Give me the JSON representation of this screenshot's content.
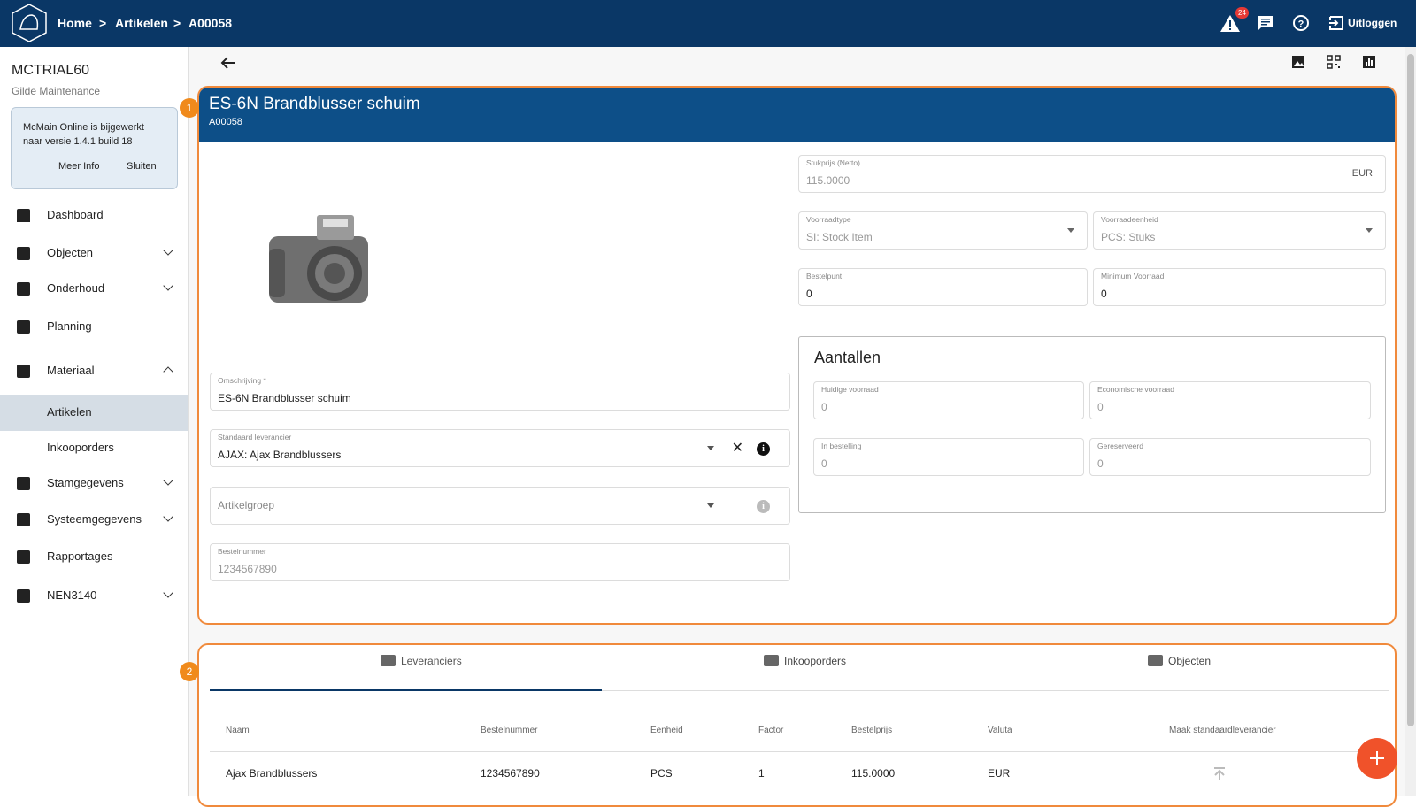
{
  "header": {
    "breadcrumb": [
      "Home",
      "Artikelen",
      "A00058"
    ],
    "alert_count": "24",
    "logout": "Uitloggen"
  },
  "sidebar": {
    "org": "MCTRIAL60",
    "suborg": "Gilde Maintenance",
    "notice": {
      "text": "McMain Online is bijgewerkt naar versie 1.4.1 build 18",
      "buttons": [
        "Meer Info",
        "Sluiten"
      ]
    },
    "menu": [
      "Dashboard",
      "Objecten",
      "Onderhoud",
      "Planning",
      "Materiaal",
      "Artikelen",
      "Inkooporders",
      "Stamgegevens",
      "Systeemgegevens",
      "Rapportages",
      "NEN3140"
    ]
  },
  "markers": [
    "1",
    "2"
  ],
  "card": {
    "title": "ES-6N Brandblusser schuim",
    "code": "A00058",
    "fields_left": [
      {
        "label": "Omschrijving *",
        "value": "ES-6N Brandblusser schuim"
      },
      {
        "label": "Standaard leverancier",
        "value": "AJAX: Ajax Brandblussers"
      },
      {
        "label": "Artikelgroep"
      },
      {
        "label": "Bestelnummer",
        "value": "1234567890"
      }
    ],
    "fields_right": [
      {
        "label": "Stukprijs (Netto)",
        "value": "115.0000",
        "suffix": "EUR"
      },
      {
        "label": "Voorraadtype",
        "value": "SI: Stock Item"
      },
      {
        "label": "Voorraadeenheid",
        "value": "PCS: Stuks"
      },
      {
        "label": "Bestelpunt",
        "value": "0"
      },
      {
        "label": "Minimum Voorraad",
        "value": "0"
      }
    ],
    "quantities": {
      "title": "Aantallen",
      "fields": [
        {
          "label": "Huidige voorraad",
          "value": "0"
        },
        {
          "label": "Economische voorraad",
          "value": "0"
        },
        {
          "label": "In bestelling",
          "value": "0"
        },
        {
          "label": "Gereserveerd",
          "value": "0"
        }
      ]
    }
  },
  "tabs": [
    "Leveranciers",
    "Inkooporders",
    "Objecten"
  ],
  "table": {
    "columns": [
      "Naam",
      "Bestelnummer",
      "Eenheid",
      "Factor",
      "Bestelprijs",
      "Valuta",
      "Maak standaardleverancier"
    ],
    "rows": [
      [
        "Ajax Brandblussers",
        "1234567890",
        "PCS",
        "1",
        "115.0000",
        "EUR"
      ]
    ]
  }
}
